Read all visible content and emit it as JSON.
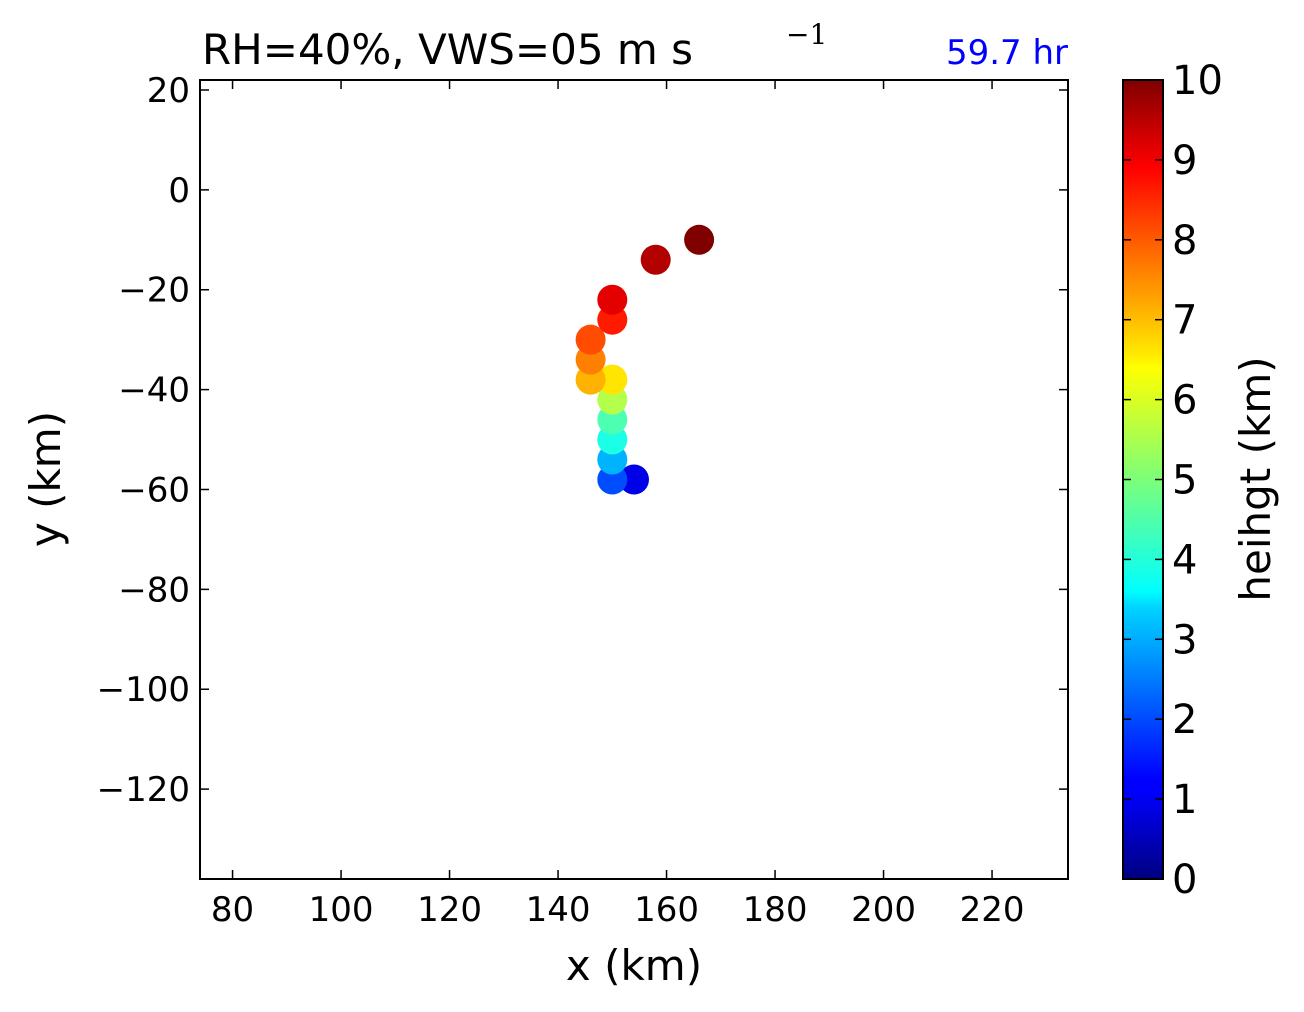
{
  "chart_data": {
    "type": "scatter",
    "title": "RH=40%, VWS=05 m s",
    "title_superscript": "−1",
    "annotation": "59.7 hr",
    "annotation_color": "#0000ff",
    "xlabel": "x (km)",
    "ylabel": "y (km)",
    "xlim": [
      74,
      234
    ],
    "ylim": [
      -138,
      22
    ],
    "xticks": [
      80,
      100,
      120,
      140,
      160,
      180,
      200,
      220
    ],
    "yticks": [
      20,
      0,
      -20,
      -40,
      -60,
      -80,
      -100,
      -120
    ],
    "xtick_labels": [
      "80",
      "100",
      "120",
      "140",
      "160",
      "180",
      "200",
      "220"
    ],
    "ytick_labels": [
      "20",
      "0",
      "−20",
      "−40",
      "−60",
      "−80",
      "−100",
      "−120"
    ],
    "grid": false,
    "colormap": "jet",
    "colorbar": {
      "label": "heihgt (km)",
      "range": [
        0,
        10
      ],
      "ticks": [
        "0",
        "1",
        "2",
        "3",
        "4",
        "5",
        "6",
        "7",
        "8",
        "9",
        "10"
      ]
    },
    "points": [
      {
        "x": 154,
        "y": -58,
        "z": 1.0
      },
      {
        "x": 150,
        "y": -58,
        "z": 2.0
      },
      {
        "x": 150,
        "y": -54,
        "z": 3.0
      },
      {
        "x": 150,
        "y": -50,
        "z": 4.0
      },
      {
        "x": 150,
        "y": -46,
        "z": 4.5
      },
      {
        "x": 150,
        "y": -42,
        "z": 5.5
      },
      {
        "x": 150,
        "y": -38,
        "z": 6.5
      },
      {
        "x": 146,
        "y": -38,
        "z": 7.0
      },
      {
        "x": 146,
        "y": -34,
        "z": 7.5
      },
      {
        "x": 146,
        "y": -30,
        "z": 8.0
      },
      {
        "x": 150,
        "y": -26,
        "z": 8.5
      },
      {
        "x": 150,
        "y": -22,
        "z": 9.0
      },
      {
        "x": 158,
        "y": -14,
        "z": 9.5
      },
      {
        "x": 166,
        "y": -10,
        "z": 10.0
      }
    ]
  }
}
